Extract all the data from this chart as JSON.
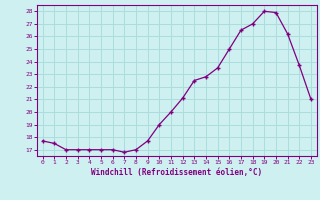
{
  "x": [
    0,
    1,
    2,
    3,
    4,
    5,
    6,
    7,
    8,
    9,
    10,
    11,
    12,
    13,
    14,
    15,
    16,
    17,
    18,
    19,
    20,
    21,
    22,
    23
  ],
  "y": [
    17.7,
    17.5,
    17.0,
    17.0,
    17.0,
    17.0,
    17.0,
    16.8,
    17.0,
    17.7,
    19.0,
    20.0,
    21.1,
    22.5,
    22.8,
    23.5,
    25.0,
    26.5,
    27.0,
    28.0,
    27.9,
    26.2,
    23.7,
    21.0
  ],
  "line_color": "#800080",
  "marker": "+",
  "bg_color": "#cff0f0",
  "grid_color": "#aadddd",
  "xlabel": "Windchill (Refroidissement éolien,°C)",
  "xlabel_color": "#800080",
  "tick_color": "#800080",
  "spine_color": "#800080",
  "ylim": [
    16.5,
    28.5
  ],
  "xlim": [
    -0.5,
    23.5
  ],
  "yticks": [
    17,
    18,
    19,
    20,
    21,
    22,
    23,
    24,
    25,
    26,
    27,
    28
  ],
  "xticks": [
    0,
    1,
    2,
    3,
    4,
    5,
    6,
    7,
    8,
    9,
    10,
    11,
    12,
    13,
    14,
    15,
    16,
    17,
    18,
    19,
    20,
    21,
    22,
    23
  ]
}
